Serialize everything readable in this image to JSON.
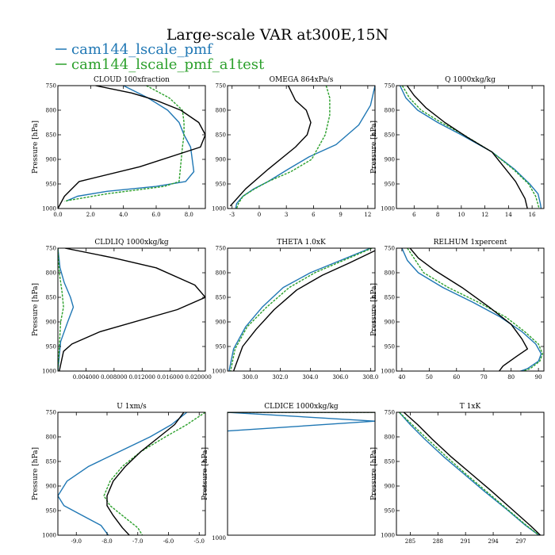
{
  "figure_title": "Large-scale VAR at300E,15N",
  "legend": [
    {
      "label": "cam144_lscale_pmf",
      "color": "#1f77b4",
      "dash": "solid"
    },
    {
      "label": "cam144_lscale_pmf_a1test",
      "color": "#2ca02c",
      "dash": "dashed"
    }
  ],
  "chart_data": [
    {
      "type": "line",
      "title": "CLOUD  100xfraction",
      "ylabel": "Pressure [hPa]",
      "xlim": [
        0,
        9
      ],
      "ylim": [
        750,
        1000
      ],
      "xticks": [
        0,
        2,
        4,
        6,
        8
      ],
      "xticklabels": [
        "0.0",
        "2.0",
        "4.0",
        "6.0",
        "8.0"
      ],
      "yticks": [
        750,
        800,
        850,
        900,
        950,
        1000
      ],
      "yticklabels": [
        "750",
        "800",
        "850",
        "900",
        "950",
        "1000"
      ],
      "series": [
        {
          "color": "#1f77b4",
          "dash": "solid",
          "x": [
            4.0,
            5.5,
            6.7,
            7.4,
            7.7,
            8.1,
            8.3,
            7.8,
            6.0,
            3.0,
            1.2,
            0.5
          ],
          "y": [
            750,
            775,
            800,
            825,
            850,
            875,
            925,
            945,
            955,
            965,
            975,
            985
          ]
        },
        {
          "color": "#2ca02c",
          "dash": "dashed",
          "x": [
            5.4,
            6.8,
            7.6,
            7.7,
            7.7,
            7.6,
            7.4,
            6.5,
            3.0,
            0.4
          ],
          "y": [
            750,
            775,
            800,
            825,
            850,
            875,
            945,
            955,
            970,
            985
          ]
        },
        {
          "color": "#000000",
          "dash": "solid",
          "x": [
            2.3,
            4.5,
            6.0,
            7.5,
            8.6,
            9.0,
            8.7,
            5.0,
            1.3,
            0.4,
            0.0
          ],
          "y": [
            750,
            765,
            780,
            800,
            825,
            850,
            875,
            915,
            945,
            975,
            1000
          ]
        }
      ]
    },
    {
      "type": "line",
      "title": "OMEGA  864xPa/s",
      "ylabel": "",
      "xlim": [
        -3.5,
        12.8
      ],
      "ylim": [
        750,
        1000
      ],
      "xticks": [
        -3,
        0,
        3,
        6,
        9,
        12
      ],
      "xticklabels": [
        "-3",
        "0",
        "3",
        "6",
        "9",
        "12"
      ],
      "yticks": [
        750,
        800,
        850,
        900,
        950,
        1000
      ],
      "yticklabels": [
        "750",
        "800",
        "850",
        "900",
        "950",
        "1000"
      ],
      "series": [
        {
          "color": "#1f77b4",
          "dash": "solid",
          "x": [
            12.8,
            12.3,
            11.0,
            8.5,
            5.5,
            3.2,
            1.0,
            -0.6,
            -1.8,
            -2.5,
            -2.6
          ],
          "y": [
            750,
            790,
            830,
            870,
            895,
            920,
            945,
            960,
            975,
            990,
            1000
          ]
        },
        {
          "color": "#2ca02c",
          "dash": "dashed",
          "x": [
            7.4,
            7.8,
            7.8,
            7.3,
            5.8,
            3.5,
            1.0,
            -0.5,
            -1.8,
            -2.3,
            -2.5
          ],
          "y": [
            750,
            775,
            810,
            850,
            900,
            925,
            945,
            960,
            975,
            990,
            1000
          ]
        },
        {
          "color": "#000000",
          "dash": "solid",
          "x": [
            3.2,
            4.0,
            5.2,
            5.7,
            5.3,
            4.0,
            1.0,
            -1.5,
            -3.2
          ],
          "y": [
            750,
            780,
            800,
            825,
            850,
            875,
            920,
            960,
            995
          ]
        }
      ]
    },
    {
      "type": "line",
      "title": "Q  1000xkg/kg",
      "ylabel": "Pressure [hPa]",
      "xlim": [
        4.5,
        17
      ],
      "ylim": [
        750,
        1000
      ],
      "xticks": [
        6,
        8,
        10,
        12,
        14,
        16
      ],
      "xticklabels": [
        "6",
        "8",
        "10",
        "12",
        "14",
        "16"
      ],
      "yticks": [
        750,
        800,
        850,
        900,
        950,
        1000
      ],
      "yticklabels": [
        "750",
        "800",
        "850",
        "900",
        "950",
        "1000"
      ],
      "series": [
        {
          "color": "#1f77b4",
          "dash": "solid",
          "x": [
            4.8,
            5.3,
            6.3,
            8.0,
            10.0,
            12.6,
            14.5,
            15.8,
            16.5,
            16.7,
            16.8
          ],
          "y": [
            750,
            775,
            800,
            825,
            850,
            885,
            920,
            950,
            970,
            990,
            1005
          ]
        },
        {
          "color": "#2ca02c",
          "dash": "dashed",
          "x": [
            5.0,
            5.6,
            6.6,
            8.3,
            10.2,
            12.6,
            14.4,
            15.7,
            16.3,
            16.6
          ],
          "y": [
            750,
            775,
            800,
            825,
            850,
            885,
            920,
            950,
            975,
            1000
          ]
        },
        {
          "color": "#000000",
          "dash": "solid",
          "x": [
            5.4,
            6.0,
            7.0,
            8.6,
            10.5,
            12.6,
            13.6,
            14.6,
            15.4,
            15.6
          ],
          "y": [
            750,
            770,
            795,
            825,
            855,
            885,
            915,
            945,
            980,
            1000
          ]
        }
      ]
    },
    {
      "type": "line",
      "title": "CLDLIQ  1000xkg/kg",
      "ylabel": "Pressure [hPa]",
      "xlim": [
        0,
        0.021
      ],
      "ylim": [
        750,
        1000
      ],
      "xticks": [
        0.004,
        0.008,
        0.012,
        0.016,
        0.02
      ],
      "xticklabels": [
        "0.004000",
        "0.008000",
        "0.012000",
        "0.016000",
        "0.020000"
      ],
      "yticks": [
        750,
        800,
        850,
        900,
        950,
        1000
      ],
      "yticklabels": [
        "750",
        "800",
        "850",
        "900",
        "950",
        "1000"
      ],
      "series": [
        {
          "color": "#1f77b4",
          "dash": "solid",
          "x": [
            0.0,
            0.0003,
            0.0009,
            0.0018,
            0.0022,
            0.0014,
            0.0004,
            0.0
          ],
          "y": [
            750,
            790,
            820,
            850,
            870,
            900,
            940,
            1000
          ]
        },
        {
          "color": "#2ca02c",
          "dash": "dashed",
          "x": [
            0.0,
            0.0002,
            0.0006,
            0.0008,
            0.0004,
            0.0
          ],
          "y": [
            750,
            800,
            840,
            870,
            900,
            1000
          ]
        },
        {
          "color": "#000000",
          "dash": "solid",
          "x": [
            0.001,
            0.008,
            0.014,
            0.0195,
            0.021,
            0.017,
            0.006,
            0.002,
            0.0008,
            0.0002
          ],
          "y": [
            750,
            770,
            790,
            825,
            850,
            875,
            920,
            945,
            960,
            1000
          ]
        }
      ]
    },
    {
      "type": "line",
      "title": "THETA  1.0xK",
      "ylabel": "",
      "xlim": [
        298.5,
        308.3
      ],
      "ylim": [
        750,
        1000
      ],
      "xticks": [
        300,
        302,
        304,
        306,
        308
      ],
      "xticklabels": [
        "300.0",
        "302.0",
        "304.0",
        "306.0",
        "308.0"
      ],
      "yticks": [
        750,
        800,
        850,
        900,
        950,
        1000
      ],
      "yticklabels": [
        "750",
        "800",
        "850",
        "900",
        "950",
        "1000"
      ],
      "series": [
        {
          "color": "#1f77b4",
          "dash": "solid",
          "x": [
            308.0,
            306.0,
            304.0,
            302.2,
            300.8,
            299.7,
            298.9,
            298.6
          ],
          "y": [
            750,
            775,
            800,
            830,
            870,
            910,
            955,
            1000
          ]
        },
        {
          "color": "#2ca02c",
          "dash": "dashed",
          "x": [
            308.1,
            306.2,
            304.3,
            302.6,
            301.1,
            299.8,
            299.0,
            298.7
          ],
          "y": [
            750,
            775,
            800,
            830,
            870,
            910,
            955,
            1000
          ]
        },
        {
          "color": "#000000",
          "dash": "solid",
          "x": [
            308.3,
            306.6,
            304.8,
            303.1,
            301.6,
            300.4,
            299.5,
            299.2,
            298.9
          ],
          "y": [
            755,
            780,
            805,
            835,
            875,
            915,
            950,
            975,
            1000
          ]
        }
      ]
    },
    {
      "type": "line",
      "title": "RELHUM  1xpercent",
      "ylabel": "Pressure [hPa]",
      "xlim": [
        38,
        92
      ],
      "ylim": [
        750,
        1000
      ],
      "xticks": [
        40,
        50,
        60,
        70,
        80,
        90
      ],
      "xticklabels": [
        "40",
        "50",
        "60",
        "70",
        "80",
        "90"
      ],
      "yticks": [
        750,
        800,
        850,
        900,
        950,
        1000
      ],
      "yticklabels": [
        "750",
        "800",
        "850",
        "900",
        "950",
        "1000"
      ],
      "series": [
        {
          "color": "#1f77b4",
          "dash": "solid",
          "x": [
            40.0,
            42.0,
            46.0,
            55.0,
            66.0,
            76.0,
            84.0,
            89.0,
            91.0,
            90.0,
            86.0,
            81.0
          ],
          "y": [
            750,
            775,
            800,
            830,
            860,
            890,
            920,
            945,
            965,
            980,
            995,
            1005
          ]
        },
        {
          "color": "#2ca02c",
          "dash": "dashed",
          "x": [
            42.0,
            45.0,
            48.0,
            57.0,
            68.0,
            78.0,
            85.0,
            90.0,
            91.5,
            90.5,
            87.0,
            82.0
          ],
          "y": [
            750,
            775,
            800,
            830,
            860,
            890,
            920,
            945,
            965,
            980,
            995,
            1005
          ]
        },
        {
          "color": "#000000",
          "dash": "solid",
          "x": [
            43.0,
            46.0,
            52.0,
            62.0,
            72.0,
            80.0,
            84.0,
            86.0,
            82.0,
            77.0,
            75.0
          ],
          "y": [
            750,
            770,
            795,
            830,
            870,
            905,
            935,
            955,
            970,
            990,
            1005
          ]
        }
      ]
    },
    {
      "type": "line",
      "title": "U  1xm/s",
      "ylabel": "Pressure [hPa]",
      "xlim": [
        -9.6,
        -4.8
      ],
      "ylim": [
        750,
        1000
      ],
      "xticks": [
        -9,
        -8,
        -7,
        -6,
        -5
      ],
      "xticklabels": [
        "-9.0",
        "-8.0",
        "-7.0",
        "-6.0",
        "-5.0"
      ],
      "yticks": [
        750,
        800,
        850,
        900,
        950,
        1000
      ],
      "yticklabels": [
        "750",
        "800",
        "850",
        "900",
        "950",
        "1000"
      ],
      "series": [
        {
          "color": "#1f77b4",
          "dash": "solid",
          "x": [
            -5.4,
            -5.9,
            -6.6,
            -7.6,
            -8.6,
            -9.3,
            -9.6,
            -9.4,
            -8.8,
            -8.2,
            -7.9
          ],
          "y": [
            750,
            775,
            800,
            830,
            860,
            890,
            920,
            940,
            960,
            980,
            1005
          ]
        },
        {
          "color": "#2ca02c",
          "dash": "dashed",
          "x": [
            -4.8,
            -5.4,
            -6.1,
            -6.9,
            -7.5,
            -7.9,
            -8.1,
            -7.9,
            -7.5,
            -7.0,
            -6.8
          ],
          "y": [
            750,
            775,
            800,
            830,
            860,
            890,
            920,
            940,
            960,
            985,
            1005
          ]
        },
        {
          "color": "#000000",
          "dash": "solid",
          "x": [
            -5.5,
            -5.8,
            -6.3,
            -6.9,
            -7.4,
            -7.8,
            -8.0,
            -8.0,
            -7.8,
            -7.5,
            -7.2
          ],
          "y": [
            750,
            775,
            800,
            830,
            860,
            890,
            920,
            940,
            960,
            985,
            1005
          ]
        }
      ]
    },
    {
      "type": "line",
      "title": "CLDICE  1000xkg/kg",
      "ylabel": "Pressure [hPa]",
      "xlim": [
        0,
        1
      ],
      "ylim": [
        750,
        1000
      ],
      "xticks": [],
      "xticklabels": [],
      "yticks": [],
      "yticklabels": [],
      "bottom_tick_label": "1000",
      "series": [
        {
          "color": "#1f77b4",
          "dash": "solid",
          "x": [
            0.0,
            1.0,
            0.0
          ],
          "y": [
            750,
            768,
            788
          ]
        },
        {
          "color": "#2ca02c",
          "dash": "dashed",
          "x": [
            0.0,
            1.0
          ],
          "y": [
            750,
            750
          ]
        },
        {
          "color": "#000000",
          "dash": "solid",
          "x": [
            0.0,
            1.0
          ],
          "y": [
            750,
            750
          ]
        }
      ]
    },
    {
      "type": "line",
      "title": "T  1xK",
      "ylabel": "Pressure [hPa]",
      "xlim": [
        283.5,
        299.5
      ],
      "ylim": [
        750,
        1000
      ],
      "xticks": [
        285,
        288,
        291,
        294,
        297
      ],
      "xticklabels": [
        "285",
        "288",
        "291",
        "294",
        "297"
      ],
      "yticks": [
        750,
        800,
        850,
        900,
        950,
        1000
      ],
      "yticklabels": [
        "750",
        "800",
        "850",
        "900",
        "950",
        "1000"
      ],
      "series": [
        {
          "color": "#1f77b4",
          "dash": "solid",
          "x": [
            283.8,
            285.0,
            286.6,
            288.6,
            290.8,
            293.0,
            295.3,
            297.5,
            299.3
          ],
          "y": [
            750,
            775,
            805,
            840,
            875,
            910,
            945,
            980,
            1005
          ]
        },
        {
          "color": "#2ca02c",
          "dash": "dashed",
          "x": [
            283.8,
            285.2,
            286.9,
            288.9,
            291.0,
            293.2,
            295.4,
            297.6,
            299.3
          ],
          "y": [
            750,
            775,
            805,
            840,
            875,
            910,
            945,
            980,
            1005
          ]
        },
        {
          "color": "#000000",
          "dash": "solid",
          "x": [
            284.3,
            285.8,
            287.4,
            289.4,
            291.6,
            293.8,
            295.9,
            298.0,
            299.4
          ],
          "y": [
            750,
            775,
            805,
            840,
            875,
            910,
            945,
            980,
            1005
          ]
        }
      ]
    }
  ]
}
